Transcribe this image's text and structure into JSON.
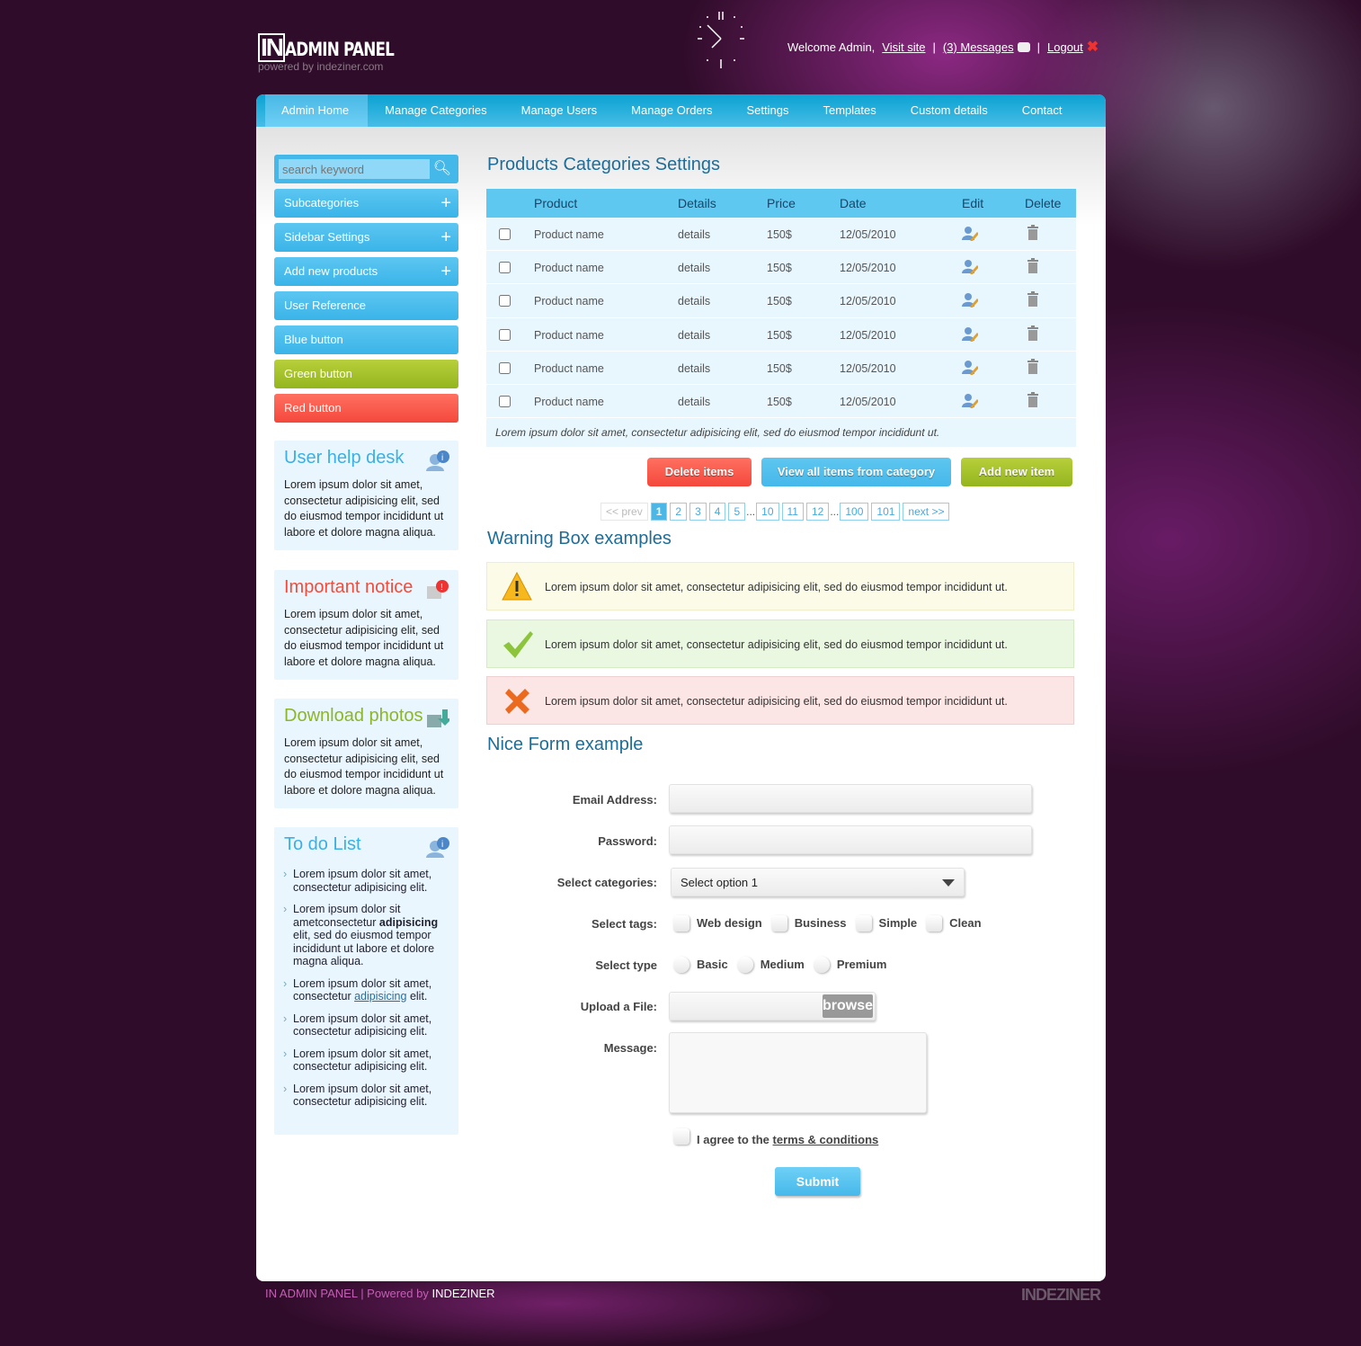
{
  "header": {
    "logo_mark": "IN",
    "logo_title": "ADMIN PANEL",
    "logo_sub": "powered by indeziner.com",
    "welcome": "Welcome Admin,",
    "visit_site": "Visit site",
    "messages": "(3) Messages",
    "logout": "Logout",
    "separator": "|"
  },
  "nav": [
    "Admin Home",
    "Manage Categories",
    "Manage Users",
    "Manage Orders",
    "Settings",
    "Templates",
    "Custom details",
    "Contact"
  ],
  "sidebar": {
    "search_placeholder": "search keyword",
    "buttons": [
      {
        "label": "Subcategories",
        "plus": "+"
      },
      {
        "label": "Sidebar Settings",
        "plus": "+"
      },
      {
        "label": "Add new products",
        "plus": "+"
      },
      {
        "label": "User Reference"
      },
      {
        "label": "Blue button"
      },
      {
        "label": "Green button"
      },
      {
        "label": "Red button"
      }
    ],
    "help_title": "User help desk",
    "help_text": "Lorem ipsum dolor sit amet, consectetur adipisicing elit, sed do eiusmod tempor incididunt ut labore et dolore magna aliqua.",
    "notice_title": "Important notice",
    "notice_text": "Lorem ipsum dolor sit amet, consectetur adipisicing elit, sed do eiusmod tempor incididunt ut labore et dolore magna aliqua.",
    "download_title": "Download photos",
    "download_text": "Lorem ipsum dolor sit amet, consectetur adipisicing elit, sed do eiusmod tempor incididunt ut labore et dolore magna aliqua.",
    "todo_title": "To do List",
    "todo": [
      {
        "pre": "Lorem ipsum dolor sit amet, consectetur adipisicing elit.",
        "strong": "",
        "link": "",
        "post": ""
      },
      {
        "pre": "Lorem ipsum dolor sit ametconsectetur ",
        "strong": "adipisicing",
        "link": "",
        "post": " elit, sed do eiusmod tempor incididunt ut labore et dolore magna aliqua."
      },
      {
        "pre": "Lorem ipsum dolor sit amet, consectetur ",
        "strong": "",
        "link": "adipisicing",
        "post": " elit."
      },
      {
        "pre": "Lorem ipsum dolor sit amet, consectetur adipisicing elit.",
        "strong": "",
        "link": "",
        "post": ""
      },
      {
        "pre": "Lorem ipsum dolor sit amet, consectetur adipisicing elit.",
        "strong": "",
        "link": "",
        "post": ""
      },
      {
        "pre": "Lorem ipsum dolor sit amet, consectetur adipisicing elit.",
        "strong": "",
        "link": "",
        "post": ""
      }
    ]
  },
  "main": {
    "title": "Products Categories Settings",
    "columns": [
      "Product",
      "Details",
      "Price",
      "Date",
      "Edit",
      "Delete"
    ],
    "rows": [
      {
        "product": "Product name",
        "details": "details",
        "price": "150$",
        "date": "12/05/2010"
      },
      {
        "product": "Product name",
        "details": "details",
        "price": "150$",
        "date": "12/05/2010"
      },
      {
        "product": "Product name",
        "details": "details",
        "price": "150$",
        "date": "12/05/2010"
      },
      {
        "product": "Product name",
        "details": "details",
        "price": "150$",
        "date": "12/05/2010"
      },
      {
        "product": "Product name",
        "details": "details",
        "price": "150$",
        "date": "12/05/2010"
      },
      {
        "product": "Product name",
        "details": "details",
        "price": "150$",
        "date": "12/05/2010"
      }
    ],
    "table_note": "Lorem ipsum dolor sit amet, consectetur adipisicing elit, sed do eiusmod tempor incididunt ut.",
    "delete_btn": "Delete items",
    "view_btn": "View all items from category",
    "add_btn": "Add new item",
    "pagination": {
      "prev": "<< prev",
      "pages": [
        "1",
        "2",
        "3",
        "4",
        "5",
        "...",
        "10",
        "11",
        "12",
        "...",
        "100",
        "101"
      ],
      "next": "next >>",
      "current": "1"
    },
    "warning_title": "Warning Box examples",
    "warnings": [
      {
        "type": "warning",
        "text": "Lorem ipsum dolor sit amet, consectetur adipisicing elit, sed do eiusmod tempor incididunt ut.",
        "bg": "#fbfbe8",
        "border": "#efeec9"
      },
      {
        "type": "success",
        "text": "Lorem ipsum dolor sit amet, consectetur adipisicing elit, sed do eiusmod tempor incididunt ut.",
        "bg": "#eaf8e1",
        "border": "#d4ecc4"
      },
      {
        "type": "error",
        "text": "Lorem ipsum dolor sit amet, consectetur adipisicing elit, sed do eiusmod tempor incididunt ut.",
        "bg": "#fbe5e5",
        "border": "#efcfcf"
      }
    ],
    "form_title": "Nice Form example",
    "form": {
      "email_label": "Email Address:",
      "password_label": "Password:",
      "categories_label": "Select categories:",
      "categories_value": "Select option 1",
      "tags_label": "Select tags:",
      "tags": [
        "Web design",
        "Business",
        "Simple",
        "Clean"
      ],
      "type_label": "Select type",
      "types": [
        "Basic",
        "Medium",
        "Premium"
      ],
      "upload_label": "Upload a File:",
      "browse": "browse",
      "message_label": "Message:",
      "agree_pre": "I agree to the ",
      "agree_link": "terms & conditions",
      "submit": "Submit"
    }
  },
  "footer": {
    "text": "IN ADMIN PANEL | Powered by ",
    "brand": "INDEZINER",
    "logo": "INDEZINER"
  },
  "colors": {
    "accent": "#3ab4e8",
    "green": "#9bbb24",
    "red": "#f4483c",
    "title": "#1e6d99"
  }
}
